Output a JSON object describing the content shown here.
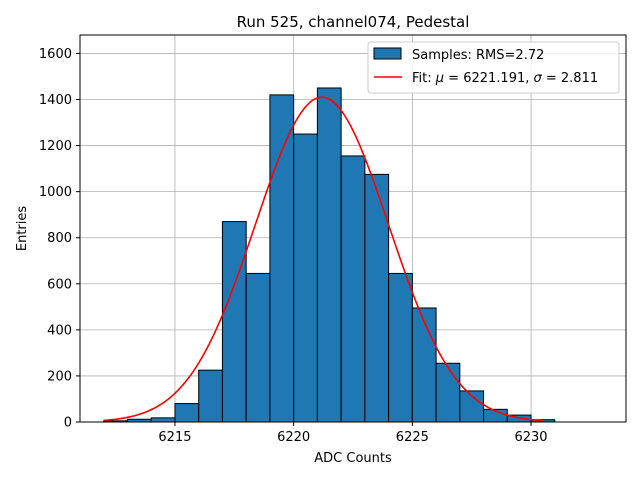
{
  "chart_data": {
    "type": "bar",
    "title": "Run 525, channel074, Pedestal",
    "xlabel": "ADC Counts",
    "ylabel": "Entries",
    "xlim": [
      6211.0,
      6234.0
    ],
    "ylim": [
      0,
      1680
    ],
    "xticks": [
      6215,
      6220,
      6225,
      6230
    ],
    "yticks": [
      0,
      200,
      400,
      600,
      800,
      1000,
      1200,
      1400,
      1600
    ],
    "grid": true,
    "legend_position": "top-right",
    "bin_edges": [
      6212,
      6213,
      6214,
      6215,
      6216,
      6217,
      6218,
      6219,
      6220,
      6221,
      6222,
      6223,
      6224,
      6225,
      6226,
      6227,
      6228,
      6229,
      6230,
      6231
    ],
    "counts": [
      5,
      12,
      18,
      80,
      225,
      870,
      645,
      1420,
      1250,
      1450,
      1155,
      1075,
      645,
      495,
      255,
      135,
      55,
      30,
      10
    ],
    "fit": {
      "mu": 6221.191,
      "sigma": 2.811,
      "amplitude": 1410,
      "x_range": [
        6212,
        6230.5
      ]
    },
    "legend": [
      {
        "label_prefix": "Samples: RMS=2.72",
        "kind": "patch",
        "color": "#1f77b4"
      },
      {
        "label_prefix": "Fit: ",
        "mu_symbol": "μ",
        "mu_text": " = 6221.191, ",
        "sigma_symbol": "σ",
        "sigma_text": " = 2.811",
        "kind": "line",
        "color": "#ff0000"
      }
    ],
    "colors": {
      "bar": "#1f77b4",
      "fit": "#ff0000",
      "grid": "#b0b0b0"
    }
  }
}
